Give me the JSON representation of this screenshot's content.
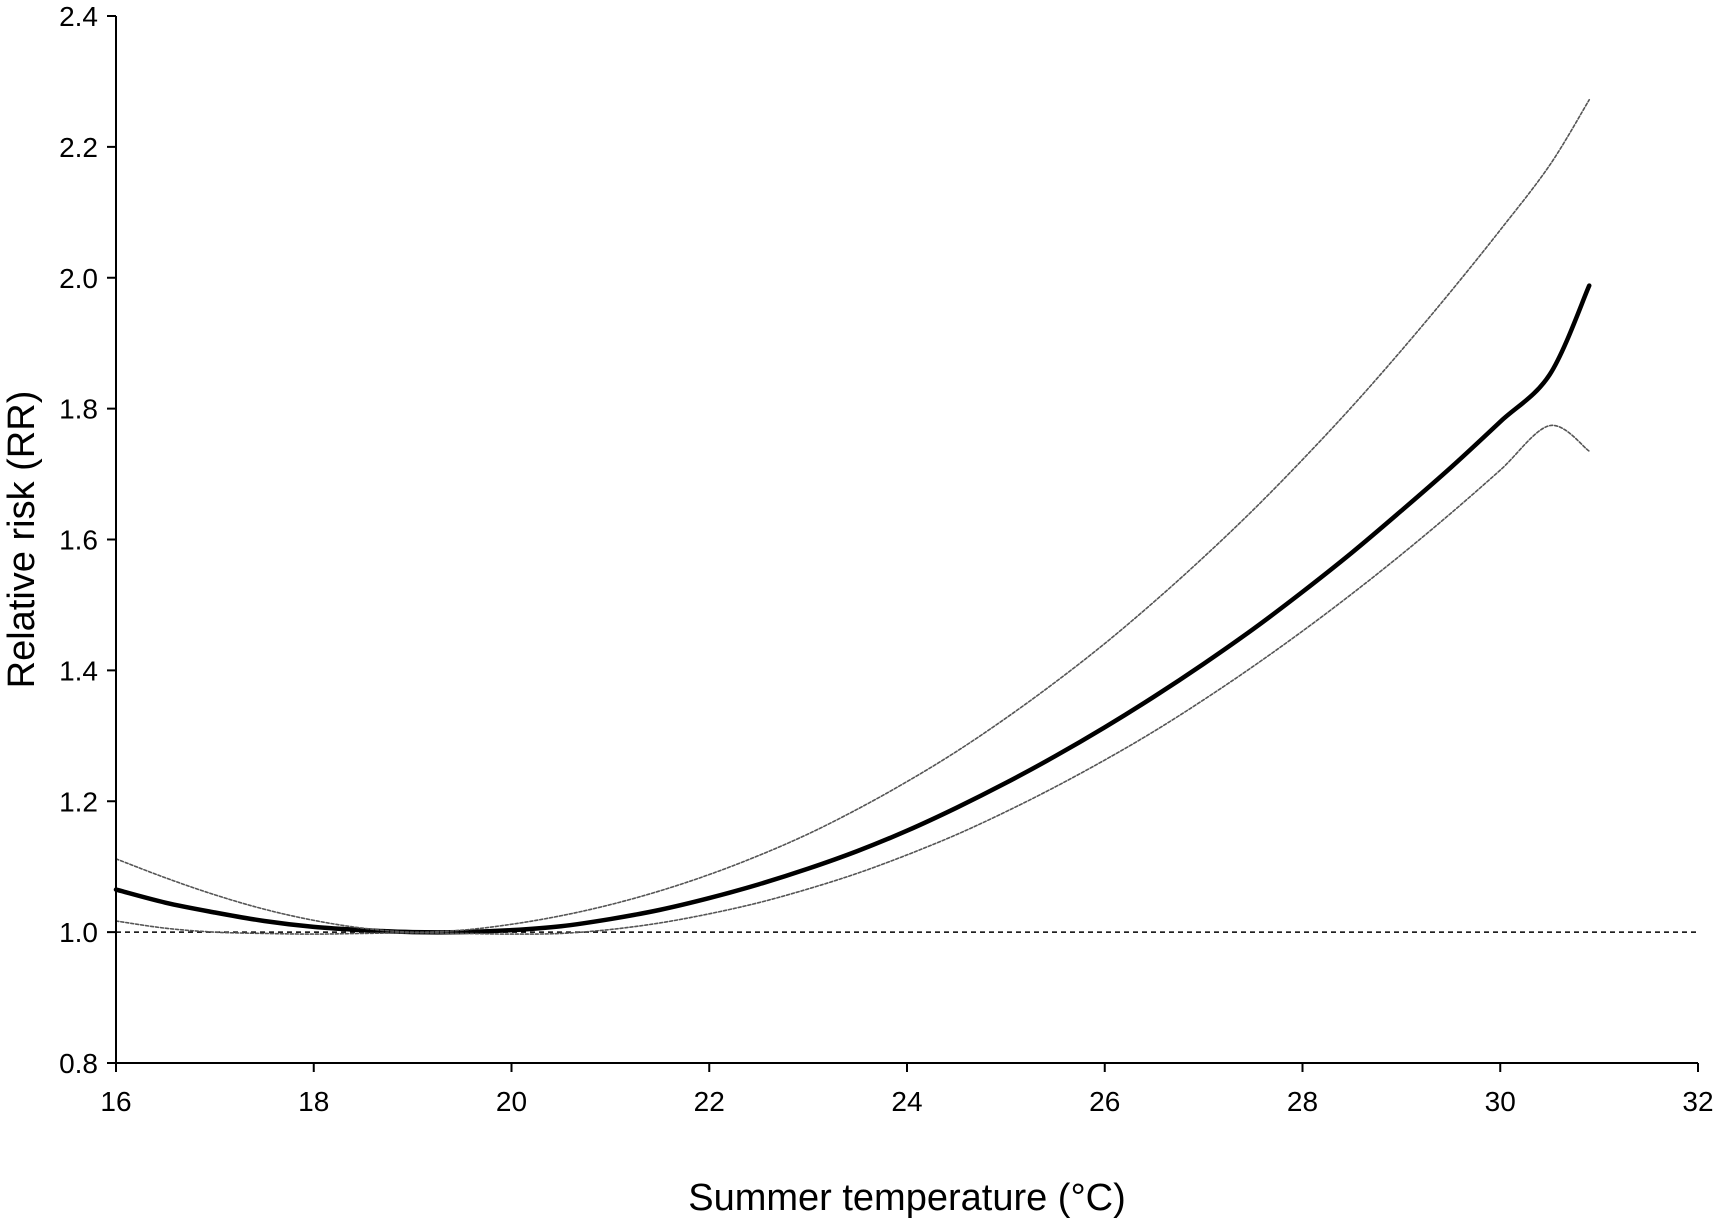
{
  "chart_data": {
    "type": "line",
    "xlabel": "Summer temperature (°C)",
    "ylabel": "Relative risk (RR)",
    "xlim": [
      16,
      32
    ],
    "ylim": [
      0.8,
      2.4
    ],
    "x_ticks": [
      16,
      18,
      20,
      22,
      24,
      26,
      28,
      30,
      32
    ],
    "y_ticks": [
      0.8,
      1.0,
      1.2,
      1.4,
      1.6,
      1.8,
      2.0,
      2.2,
      2.4
    ],
    "x_tick_labels": [
      "16",
      "18",
      "20",
      "22",
      "24",
      "26",
      "28",
      "30",
      "32"
    ],
    "y_tick_labels": [
      "0.8",
      "1.0",
      "1.2",
      "1.4",
      "1.6",
      "1.8",
      "2.0",
      "2.2",
      "2.4"
    ],
    "grid": false,
    "legend": "none",
    "reference_line": {
      "y": 1.0,
      "style": "dashed"
    },
    "series": [
      {
        "role": "estimate",
        "style": "solid-thick",
        "x": [
          16,
          16.5,
          17,
          17.5,
          18,
          18.5,
          19,
          19.5,
          20,
          20.5,
          21,
          21.5,
          22,
          22.5,
          23,
          23.5,
          24,
          24.5,
          25,
          25.5,
          26,
          26.5,
          27,
          27.5,
          28,
          28.5,
          29,
          29.5,
          30,
          30.5,
          30.9
        ],
        "y": [
          1.065,
          1.045,
          1.03,
          1.017,
          1.008,
          1.003,
          1.0,
          1.0,
          1.003,
          1.009,
          1.02,
          1.034,
          1.052,
          1.073,
          1.097,
          1.124,
          1.155,
          1.19,
          1.228,
          1.269,
          1.313,
          1.36,
          1.41,
          1.463,
          1.52,
          1.58,
          1.644,
          1.71,
          1.78,
          1.852,
          1.988
        ]
      },
      {
        "role": "upper-ci",
        "style": "dotted-thin",
        "x": [
          16,
          16.5,
          17,
          17.5,
          18,
          18.5,
          19,
          19.5,
          20,
          20.5,
          21,
          21.5,
          22,
          22.5,
          23,
          23.5,
          24,
          24.5,
          25,
          25.5,
          26,
          26.5,
          27,
          27.5,
          28,
          28.5,
          29,
          29.5,
          30,
          30.5,
          30.9
        ],
        "y": [
          1.112,
          1.083,
          1.057,
          1.035,
          1.018,
          1.006,
          1.0,
          1.003,
          1.012,
          1.025,
          1.042,
          1.063,
          1.088,
          1.117,
          1.15,
          1.188,
          1.23,
          1.276,
          1.327,
          1.382,
          1.441,
          1.505,
          1.573,
          1.645,
          1.722,
          1.803,
          1.889,
          1.979,
          2.073,
          2.172,
          2.272
        ]
      },
      {
        "role": "lower-ci",
        "style": "dotted-thin",
        "x": [
          16,
          16.5,
          17,
          17.5,
          18,
          18.5,
          19,
          19.5,
          20,
          20.5,
          21,
          21.5,
          22,
          22.5,
          23,
          23.5,
          24,
          24.5,
          25,
          25.5,
          26,
          26.5,
          27,
          27.5,
          28,
          28.5,
          29,
          29.5,
          30,
          30.5,
          30.9
        ],
        "y": [
          1.017,
          1.006,
          1.0,
          0.998,
          0.997,
          0.998,
          0.999,
          0.998,
          0.997,
          0.998,
          1.004,
          1.014,
          1.028,
          1.045,
          1.066,
          1.09,
          1.118,
          1.149,
          1.184,
          1.222,
          1.263,
          1.307,
          1.355,
          1.406,
          1.46,
          1.517,
          1.577,
          1.64,
          1.706,
          1.774,
          1.735
        ]
      }
    ]
  }
}
